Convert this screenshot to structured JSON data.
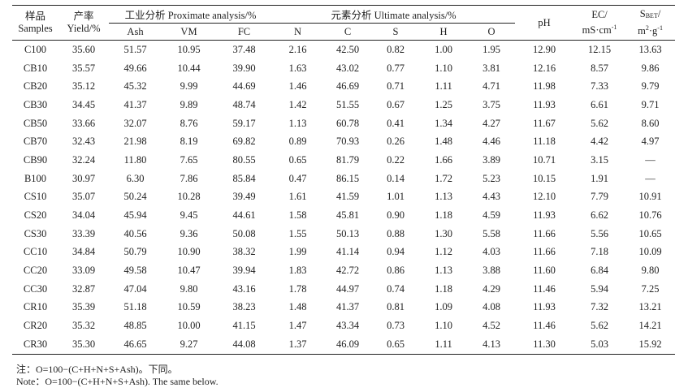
{
  "table": {
    "headers": {
      "sample_cn": "样品",
      "sample_en": "Samples",
      "yield_cn": "产率",
      "yield_en": "Yield/%",
      "proximate_group": "工业分析 Proximate analysis/%",
      "ultimate_group": "元素分析 Ultimate analysis/%",
      "ash": "Ash",
      "vm": "VM",
      "fc": "FC",
      "n": "N",
      "c": "C",
      "s": "S",
      "h": "H",
      "o": "O",
      "ph": "pH",
      "ec_line1": "EC/",
      "ec_unit_base": "mS·cm",
      "ec_unit_exp": "-1",
      "sbet_S": "S",
      "sbet_sub": "BET",
      "sbet_slash": "/",
      "sbet_unit_m": "m",
      "sbet_unit_m_exp": "2",
      "sbet_unit_g": "·g",
      "sbet_unit_g_exp": "-1"
    },
    "rows": [
      [
        "C100",
        "35.60",
        "51.57",
        "10.95",
        "37.48",
        "2.16",
        "42.50",
        "0.82",
        "1.00",
        "1.95",
        "12.90",
        "12.15",
        "13.63"
      ],
      [
        "CB10",
        "35.57",
        "49.66",
        "10.44",
        "39.90",
        "1.63",
        "43.02",
        "0.77",
        "1.10",
        "3.81",
        "12.16",
        "8.57",
        "9.86"
      ],
      [
        "CB20",
        "35.12",
        "45.32",
        "9.99",
        "44.69",
        "1.46",
        "46.69",
        "0.71",
        "1.11",
        "4.71",
        "11.98",
        "7.33",
        "9.79"
      ],
      [
        "CB30",
        "34.45",
        "41.37",
        "9.89",
        "48.74",
        "1.42",
        "51.55",
        "0.67",
        "1.25",
        "3.75",
        "11.93",
        "6.61",
        "9.71"
      ],
      [
        "CB50",
        "33.66",
        "32.07",
        "8.76",
        "59.17",
        "1.13",
        "60.78",
        "0.41",
        "1.34",
        "4.27",
        "11.67",
        "5.62",
        "8.60"
      ],
      [
        "CB70",
        "32.43",
        "21.98",
        "8.19",
        "69.82",
        "0.89",
        "70.93",
        "0.26",
        "1.48",
        "4.46",
        "11.18",
        "4.42",
        "4.97"
      ],
      [
        "CB90",
        "32.24",
        "11.80",
        "7.65",
        "80.55",
        "0.65",
        "81.79",
        "0.22",
        "1.66",
        "3.89",
        "10.71",
        "3.15",
        "—"
      ],
      [
        "B100",
        "30.97",
        "6.30",
        "7.86",
        "85.84",
        "0.47",
        "86.15",
        "0.14",
        "1.72",
        "5.23",
        "10.15",
        "1.91",
        "—"
      ],
      [
        "CS10",
        "35.07",
        "50.24",
        "10.28",
        "39.49",
        "1.61",
        "41.59",
        "1.01",
        "1.13",
        "4.43",
        "12.10",
        "7.79",
        "10.91"
      ],
      [
        "CS20",
        "34.04",
        "45.94",
        "9.45",
        "44.61",
        "1.58",
        "45.81",
        "0.90",
        "1.18",
        "4.59",
        "11.93",
        "6.62",
        "10.76"
      ],
      [
        "CS30",
        "33.39",
        "40.56",
        "9.36",
        "50.08",
        "1.55",
        "50.13",
        "0.88",
        "1.30",
        "5.58",
        "11.66",
        "5.56",
        "10.65"
      ],
      [
        "CC10",
        "34.84",
        "50.79",
        "10.90",
        "38.32",
        "1.99",
        "41.14",
        "0.94",
        "1.12",
        "4.03",
        "11.66",
        "7.18",
        "10.09"
      ],
      [
        "CC20",
        "33.09",
        "49.58",
        "10.47",
        "39.94",
        "1.83",
        "42.72",
        "0.86",
        "1.13",
        "3.88",
        "11.60",
        "6.84",
        "9.80"
      ],
      [
        "CC30",
        "32.87",
        "47.04",
        "9.80",
        "43.16",
        "1.78",
        "44.97",
        "0.74",
        "1.18",
        "4.29",
        "11.46",
        "5.94",
        "7.25"
      ],
      [
        "CR10",
        "35.39",
        "51.18",
        "10.59",
        "38.23",
        "1.48",
        "41.37",
        "0.81",
        "1.09",
        "4.08",
        "11.93",
        "7.32",
        "13.21"
      ],
      [
        "CR20",
        "35.32",
        "48.85",
        "10.00",
        "41.15",
        "1.47",
        "43.34",
        "0.73",
        "1.10",
        "4.52",
        "11.46",
        "5.62",
        "14.21"
      ],
      [
        "CR30",
        "35.30",
        "46.65",
        "9.27",
        "44.08",
        "1.37",
        "46.09",
        "0.65",
        "1.11",
        "4.13",
        "11.30",
        "5.03",
        "15.92"
      ]
    ]
  },
  "notes": {
    "cn": "注：O=100−(C+H+N+S+Ash)。下同。",
    "en": "Note：O=100−(C+H+N+S+Ash). The same below."
  }
}
